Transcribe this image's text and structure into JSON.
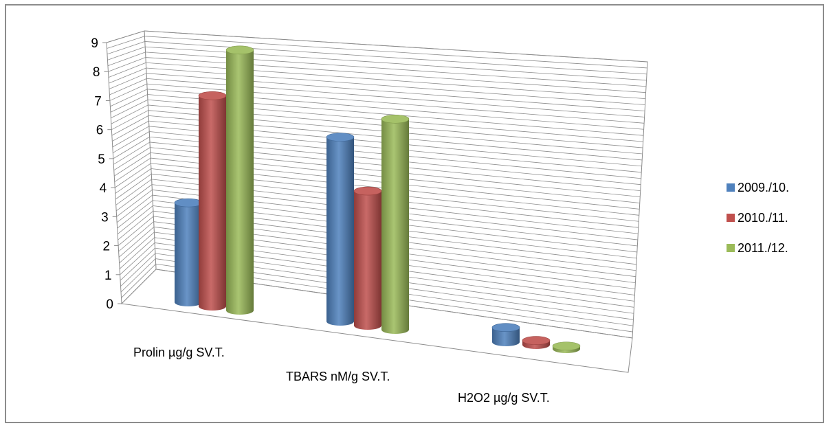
{
  "chart_data": {
    "type": "bar",
    "style": "3d-cylinder",
    "title": "",
    "xlabel": "",
    "ylabel": "",
    "categories": [
      "Prolin µg/g SV.T.",
      "TBARS nM/g SV.T.",
      "H2O2 µg/g SV.T."
    ],
    "series": [
      {
        "name": "2009./10.",
        "color": "#4f81bd",
        "values": [
          3.4,
          6.3,
          0.5
        ]
      },
      {
        "name": "2010./11.",
        "color": "#c0504d",
        "values": [
          7.2,
          4.6,
          0.15
        ]
      },
      {
        "name": "2011./12.",
        "color": "#9bbb59",
        "values": [
          8.9,
          7.2,
          0.1
        ]
      }
    ],
    "ylim": [
      0,
      9
    ],
    "yticks": [
      "0",
      "1",
      "2",
      "3",
      "4",
      "5",
      "6",
      "7",
      "8",
      "9"
    ],
    "grid": true,
    "legend_position": "right"
  }
}
